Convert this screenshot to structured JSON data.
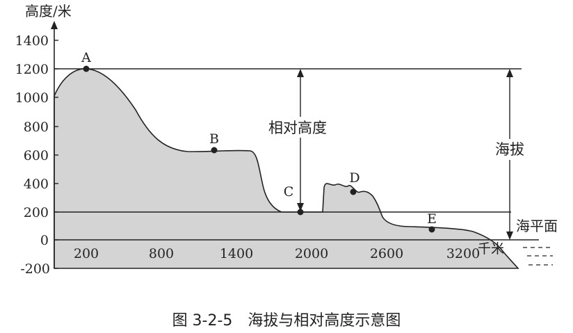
{
  "figure": {
    "y_axis_label": "高度/米",
    "y_ticks": [
      "1400",
      "1200",
      "1000",
      "800",
      "600",
      "400",
      "200",
      "0",
      "-200"
    ],
    "x_ticks": [
      "200",
      "800",
      "1400",
      "2000",
      "2600",
      "3200"
    ],
    "x_unit": "千米",
    "points": [
      {
        "label": "A",
        "x": 200,
        "y": 1200
      },
      {
        "label": "B",
        "x": 1250,
        "y": 630
      },
      {
        "label": "C",
        "x": 1925,
        "y": 200
      },
      {
        "label": "D",
        "x": 2330,
        "y": 340
      },
      {
        "label": "E",
        "x": 2950,
        "y": 80
      }
    ],
    "relative_height_label": "相对高度",
    "altitude_label": "海拔",
    "sea_level_label": "海平面",
    "caption": "图 3-2-5　海拔与相对高度示意图"
  },
  "colors": {
    "terrain_fill": "#d4d4d4",
    "line": "#222222"
  }
}
